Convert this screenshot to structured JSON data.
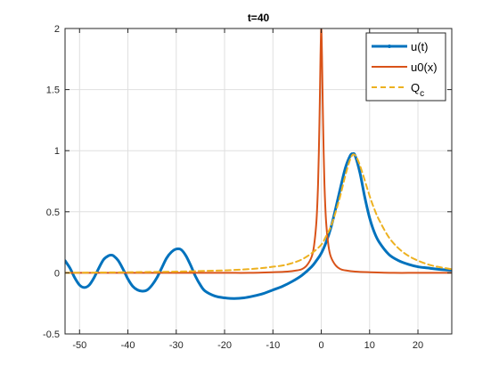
{
  "chart_data": {
    "type": "line",
    "title": "t=40",
    "xlim": [
      -53,
      27
    ],
    "ylim": [
      -0.5,
      2
    ],
    "xticks": [
      -50,
      -40,
      -30,
      -20,
      -10,
      0,
      10,
      20
    ],
    "yticks": [
      -0.5,
      0,
      0.5,
      1,
      1.5,
      2
    ],
    "xtick_labels": [
      "-50",
      "-40",
      "-30",
      "-20",
      "-10",
      "0",
      "10",
      "20"
    ],
    "ytick_labels": [
      "-0.5",
      "0",
      "0.5",
      "1",
      "1.5",
      "2"
    ],
    "grid": true,
    "legend_position": "top-right",
    "series": [
      {
        "name": "u(t)",
        "color": "#0072BD",
        "style": "solid-with-markers",
        "x": [
          -53,
          -52,
          -51,
          -50,
          -49,
          -48,
          -47,
          -46,
          -45,
          -44,
          -43.5,
          -43,
          -42,
          -41,
          -40,
          -39,
          -38,
          -37,
          -36,
          -35,
          -34,
          -33,
          -32,
          -31,
          -30,
          -29,
          -28,
          -27,
          -26,
          -25,
          -24,
          -22,
          -20,
          -18,
          -16,
          -14,
          -12,
          -10,
          -8,
          -6,
          -4,
          -2,
          -1,
          0,
          1,
          2,
          3,
          4,
          5,
          6,
          6.5,
          7,
          8,
          9,
          10,
          11,
          12,
          14,
          16,
          18,
          20,
          22,
          24,
          27
        ],
        "y": [
          0.1,
          0.04,
          -0.04,
          -0.1,
          -0.12,
          -0.1,
          -0.04,
          0.04,
          0.11,
          0.14,
          0.145,
          0.14,
          0.1,
          0.03,
          -0.05,
          -0.11,
          -0.14,
          -0.15,
          -0.14,
          -0.1,
          -0.04,
          0.04,
          0.12,
          0.17,
          0.195,
          0.19,
          0.14,
          0.06,
          -0.03,
          -0.1,
          -0.15,
          -0.19,
          -0.205,
          -0.21,
          -0.205,
          -0.19,
          -0.17,
          -0.14,
          -0.11,
          -0.07,
          -0.02,
          0.05,
          0.1,
          0.16,
          0.25,
          0.37,
          0.53,
          0.7,
          0.86,
          0.96,
          0.975,
          0.96,
          0.82,
          0.62,
          0.45,
          0.33,
          0.25,
          0.15,
          0.1,
          0.07,
          0.05,
          0.04,
          0.03,
          0.02
        ]
      },
      {
        "name": "u0(x)",
        "color": "#D95319",
        "style": "solid",
        "x": [
          -53,
          -40,
          -30,
          -20,
          -15,
          -10,
          -7,
          -5,
          -4,
          -3,
          -2,
          -1.5,
          -1,
          -0.7,
          -0.5,
          -0.3,
          -0.15,
          0,
          0.15,
          0.3,
          0.5,
          0.7,
          1,
          1.5,
          2,
          3,
          4,
          5,
          7,
          10,
          15,
          20,
          27
        ],
        "y": [
          0.0,
          0.0,
          0.0,
          0.0,
          0.0,
          0.005,
          0.01,
          0.02,
          0.03,
          0.06,
          0.13,
          0.22,
          0.42,
          0.68,
          0.98,
          1.4,
          1.78,
          2.0,
          1.78,
          1.4,
          0.98,
          0.68,
          0.42,
          0.22,
          0.13,
          0.06,
          0.03,
          0.02,
          0.01,
          0.005,
          0.0,
          0.0,
          0.0
        ]
      },
      {
        "name": "Q",
        "name_subscript": "c",
        "color": "#EDB120",
        "style": "dashed",
        "x": [
          -53,
          -40,
          -30,
          -25,
          -20,
          -15,
          -12,
          -10,
          -8,
          -6,
          -4,
          -2,
          0,
          1,
          2,
          3,
          4,
          5,
          6,
          6.7,
          7.5,
          8.5,
          10,
          11,
          12,
          14,
          16,
          18,
          20,
          22,
          24,
          27
        ],
        "y": [
          0.0,
          0.005,
          0.01,
          0.015,
          0.02,
          0.03,
          0.04,
          0.05,
          0.06,
          0.08,
          0.11,
          0.16,
          0.23,
          0.3,
          0.38,
          0.5,
          0.64,
          0.8,
          0.93,
          0.97,
          0.93,
          0.82,
          0.63,
          0.52,
          0.43,
          0.29,
          0.2,
          0.14,
          0.1,
          0.07,
          0.05,
          0.03
        ]
      }
    ]
  }
}
